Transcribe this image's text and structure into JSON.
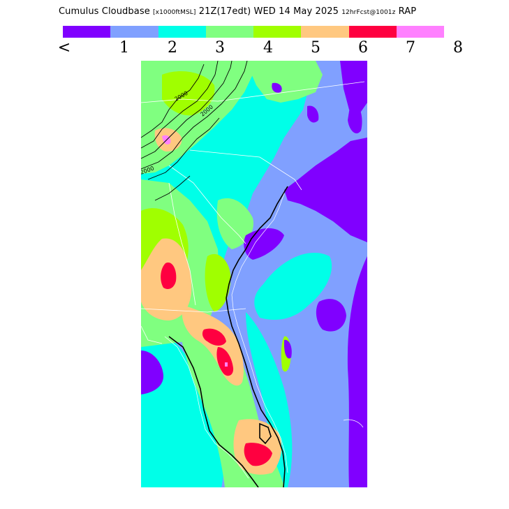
{
  "header": {
    "product": "Cumulus Cloudbase",
    "units": "[x1000ftMSL]",
    "valid_time": "21Z(17edt)",
    "date": "WED 14 May 2025",
    "forecast": "12hrFcst@1001z",
    "model": "RAP"
  },
  "legend": {
    "colors": [
      "#8000ff",
      "#80a0ff",
      "#00ffe8",
      "#80ff80",
      "#a0ff00",
      "#ffc880",
      "#ff0040",
      "#ff80ff"
    ],
    "tick_labels": [
      "<",
      "1",
      "2",
      "3",
      "4",
      "5",
      "6",
      "7",
      "8"
    ]
  },
  "map": {
    "contour_labels": [
      "2000",
      "2000",
      "2000"
    ],
    "colors": {
      "very_low": "#8000ff",
      "low": "#80a0ff",
      "cyan": "#00ffe8",
      "green": "#80ff80",
      "yellow_green": "#a0ff00",
      "orange": "#ffc880",
      "red": "#ff0040",
      "pink": "#ff80ff",
      "boundary": "#ffffff",
      "coast": "#000000"
    }
  }
}
